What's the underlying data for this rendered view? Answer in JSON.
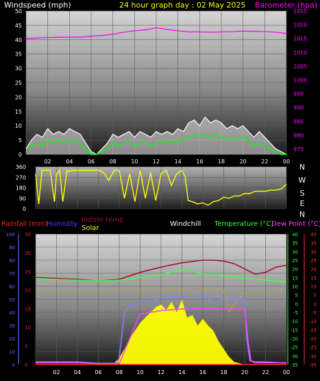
{
  "header": {
    "left_title": "Windspeed (mph)",
    "center_title": "24 hour graph day : 02 May 2025",
    "right_title": "Barometer (hpa)"
  },
  "colors": {
    "windspeed_title": "#ffffff",
    "center_title": "#ffff00",
    "barometer": "#ff00ff",
    "wind_gust": "#ffffff",
    "wind_avg": "#00ff00",
    "wind_direction": "#ffff00",
    "rainfall": "#ff2020",
    "humidity": "#4040ff",
    "indoor_temp": "#a01030",
    "solar": "#ffff00",
    "windchill": "#ffffff",
    "temperature": "#40ff40",
    "dew_point": "#ff40ff"
  },
  "x_ticks": [
    "02",
    "04",
    "06",
    "08",
    "10",
    "12",
    "14",
    "16",
    "18",
    "20",
    "22",
    "00"
  ],
  "compass": [
    "N",
    "W",
    "S",
    "E",
    "N"
  ],
  "lower_legend": {
    "rainfall": "Rainfall (mm)",
    "humidity": "Humidity",
    "indoor_temp": "Indoor temp",
    "solar": "Solar",
    "windchill": "Windchill",
    "temperature": "Temperature (°C)",
    "dew_point": "Dew Point (°C)"
  },
  "chart_data": [
    {
      "type": "line",
      "title": "24 hour graph day : 02 May 2025",
      "x_range_hours": [
        0,
        24
      ],
      "left_axis": {
        "label": "Windspeed (mph)",
        "range": [
          0,
          50
        ],
        "ticks": [
          0,
          5,
          10,
          15,
          20,
          25,
          30,
          35,
          40,
          45,
          50
        ]
      },
      "right_axis": {
        "label": "Barometer (hpa)",
        "range": [
          973,
          1025
        ],
        "ticks": [
          975,
          980,
          985,
          990,
          995,
          1000,
          1005,
          1010,
          1015,
          1020,
          1025
        ]
      },
      "series": [
        {
          "name": "Barometer (hpa)",
          "axis": "right",
          "x": [
            0,
            1,
            2,
            3,
            4,
            5,
            6,
            7,
            8,
            9,
            10,
            11,
            12,
            13,
            14,
            15,
            16,
            17,
            18,
            19,
            20,
            21,
            22,
            23,
            24
          ],
          "y": [
            1015.0,
            1015.2,
            1015.4,
            1015.5,
            1015.5,
            1015.5,
            1015.9,
            1016.1,
            1016.6,
            1017.3,
            1017.8,
            1018.2,
            1018.9,
            1018.3,
            1017.8,
            1017.4,
            1017.4,
            1017.3,
            1017.4,
            1017.5,
            1017.7,
            1017.6,
            1017.5,
            1017.3,
            1016.9
          ]
        },
        {
          "name": "Wind gust (mph)",
          "axis": "left",
          "x": [
            0,
            0.5,
            1,
            1.5,
            2,
            2.5,
            3,
            3.5,
            4,
            4.5,
            5,
            5.5,
            6,
            6.5,
            7,
            7.5,
            8,
            8.5,
            9,
            9.5,
            10,
            10.5,
            11,
            11.5,
            12,
            12.5,
            13,
            13.5,
            14,
            14.5,
            15,
            15.5,
            16,
            16.5,
            17,
            17.5,
            18,
            18.5,
            19,
            19.5,
            20,
            20.5,
            21,
            21.5,
            22,
            22.5,
            23,
            23.5,
            24
          ],
          "y": [
            2,
            5,
            7,
            6,
            9,
            7,
            8,
            7,
            9,
            8,
            7,
            4,
            1,
            0,
            2,
            4,
            7,
            6,
            7,
            8,
            6,
            8,
            7,
            6,
            8,
            7,
            8,
            7,
            9,
            8,
            11,
            12,
            10,
            13,
            11,
            12,
            11,
            9,
            10,
            9,
            10,
            8,
            6,
            8,
            6,
            4,
            2,
            1,
            0
          ]
        },
        {
          "name": "Wind average (mph)",
          "axis": "left",
          "x": [
            0,
            0.5,
            1,
            1.5,
            2,
            2.5,
            3,
            3.5,
            4,
            4.5,
            5,
            5.5,
            6,
            6.5,
            7,
            7.5,
            8,
            8.5,
            9,
            9.5,
            10,
            10.5,
            11,
            11.5,
            12,
            12.5,
            13,
            13.5,
            14,
            14.5,
            15,
            15.5,
            16,
            16.5,
            17,
            17.5,
            18,
            18.5,
            19,
            19.5,
            20,
            20.5,
            21,
            21.5,
            22,
            22.5,
            23,
            23.5,
            24
          ],
          "y": [
            1,
            3,
            4,
            3,
            5,
            4,
            5,
            4,
            5,
            5,
            4,
            2,
            0,
            0,
            1,
            2,
            4,
            3,
            4,
            4,
            3,
            4,
            4,
            3,
            4,
            4,
            5,
            4,
            5,
            5,
            6,
            7,
            6,
            7,
            6,
            7,
            6,
            5,
            6,
            5,
            6,
            5,
            3,
            4,
            3,
            2,
            1,
            0,
            0
          ]
        }
      ]
    },
    {
      "type": "line",
      "x_range_hours": [
        0,
        24
      ],
      "left_axis": {
        "label": "Wind direction",
        "range": [
          0,
          360
        ],
        "ticks": [
          0,
          90,
          180,
          270,
          360
        ]
      },
      "series": [
        {
          "name": "Wind direction (deg)",
          "x": [
            0,
            0.3,
            0.6,
            1,
            1.4,
            1.8,
            2,
            2.3,
            2.6,
            3,
            3.2,
            3.5,
            3.8,
            4,
            4.5,
            5,
            5.5,
            6,
            6.3,
            6.6,
            7,
            7.5,
            8,
            8.5,
            9,
            9.5,
            10,
            10.5,
            11,
            11.5,
            12,
            12.5,
            13,
            13.5,
            14,
            14.3,
            14.6,
            15,
            15.5,
            16,
            16.5,
            17,
            17.5,
            18,
            18.5,
            19,
            19.5,
            20,
            20.5,
            21,
            21.5,
            22,
            22.5,
            23,
            23.5,
            24
          ],
          "y": [
            300,
            40,
            330,
            330,
            330,
            60,
            300,
            330,
            60,
            330,
            320,
            330,
            330,
            330,
            330,
            330,
            330,
            330,
            320,
            300,
            240,
            330,
            330,
            90,
            300,
            60,
            330,
            90,
            310,
            70,
            300,
            330,
            200,
            300,
            330,
            280,
            70,
            60,
            40,
            50,
            30,
            60,
            70,
            100,
            90,
            110,
            110,
            130,
            130,
            150,
            150,
            150,
            160,
            160,
            170,
            210
          ]
        }
      ]
    },
    {
      "type": "line",
      "x_range_hours": [
        0,
        24
      ],
      "axes": {
        "rainfall_mm": {
          "range": [
            0,
            35
          ],
          "ticks": [
            0,
            5,
            10,
            15,
            20,
            25,
            30,
            35
          ]
        },
        "humidity_pct": {
          "range": [
            0,
            100
          ],
          "ticks": [
            0,
            10,
            20,
            30,
            40,
            50,
            60,
            70,
            80,
            90,
            100
          ]
        },
        "temperature_c": {
          "range": [
            -35,
            40
          ],
          "ticks": [
            -35,
            -30,
            -25,
            -20,
            -15,
            -10,
            -5,
            0,
            5,
            10,
            15,
            20,
            25,
            30,
            35,
            40
          ]
        },
        "dew_point_c": {
          "range": [
            -35,
            40
          ],
          "ticks": [
            -35,
            -30,
            -25,
            -20,
            -15,
            -10,
            -5,
            0,
            5,
            10,
            15,
            20,
            25,
            30,
            35,
            40
          ]
        }
      },
      "series": [
        {
          "name": "Rainfall (mm)",
          "axis": "rainfall_mm",
          "x": [
            0,
            24
          ],
          "y": [
            0,
            0
          ]
        },
        {
          "name": "Humidity",
          "axis": "humidity_pct",
          "x": [
            0,
            4,
            6,
            7,
            7.8,
            8,
            8.5,
            9,
            10,
            11,
            12,
            13,
            14,
            15,
            16,
            17,
            18,
            19,
            19.5,
            20,
            20.2,
            20.5,
            21,
            22,
            24
          ],
          "y": [
            2,
            2,
            1,
            1,
            1,
            5,
            40,
            45,
            47,
            49,
            51,
            52,
            52,
            53,
            52,
            49,
            50,
            50,
            50,
            50,
            20,
            3,
            2,
            2,
            1
          ]
        },
        {
          "name": "Indoor temp",
          "axis": "temperature_c",
          "x": [
            0,
            2,
            4,
            6,
            8,
            10,
            12,
            14,
            16,
            17,
            18,
            19,
            20,
            21,
            22,
            23,
            24
          ],
          "y": [
            15,
            14.5,
            14,
            13,
            14,
            18,
            21,
            23.5,
            25,
            25,
            24.5,
            23,
            20,
            17,
            18,
            21,
            22
          ]
        },
        {
          "name": "Temperature (°C)",
          "axis": "temperature_c",
          "x": [
            0,
            2,
            4,
            6,
            8,
            10,
            12,
            13,
            14,
            15,
            16,
            17,
            18,
            19,
            20,
            21,
            22,
            23,
            24
          ],
          "y": [
            14.5,
            14,
            13.5,
            13,
            13.5,
            15,
            16.5,
            18,
            19,
            18.5,
            17,
            16.5,
            16,
            15.5,
            14.5,
            14,
            13.5,
            13,
            12.5
          ]
        },
        {
          "name": "Dew Point (°C)",
          "axis": "dew_point_c",
          "x": [
            0,
            2,
            4,
            6,
            8,
            10,
            12,
            14,
            16,
            18,
            19,
            20,
            20.3,
            20.6,
            21,
            22,
            24
          ],
          "y": [
            -34,
            -34,
            -34,
            -34.5,
            -34.5,
            -6,
            -4,
            -3,
            -3,
            -3,
            -3,
            -3,
            -20,
            -33,
            -34,
            -34,
            -34
          ]
        },
        {
          "name": "Solar",
          "axis": "humidity_pct",
          "x": [
            0,
            6,
            7.5,
            8,
            8.5,
            9,
            9.5,
            10,
            10.5,
            11,
            11.5,
            12,
            12.5,
            13,
            13.5,
            14,
            14.5,
            15,
            15.5,
            16,
            16.5,
            17,
            17.5,
            18,
            18.5,
            19,
            20,
            24
          ],
          "y": [
            0,
            0,
            1,
            5,
            12,
            20,
            26,
            32,
            36,
            40,
            44,
            46,
            42,
            48,
            40,
            50,
            36,
            38,
            30,
            35,
            30,
            26,
            18,
            12,
            6,
            2,
            0,
            0
          ]
        },
        {
          "name": "Windchill",
          "axis": "temperature_c",
          "x": [
            0,
            2,
            4,
            6,
            7,
            8,
            9,
            10,
            12,
            14,
            16,
            18,
            18.5,
            19,
            20,
            22,
            24
          ],
          "y": [
            7,
            7,
            7,
            7,
            7,
            8,
            7.5,
            7.5,
            8,
            8,
            8.5,
            7.5,
            -5,
            0,
            6,
            7,
            7
          ]
        }
      ]
    }
  ]
}
